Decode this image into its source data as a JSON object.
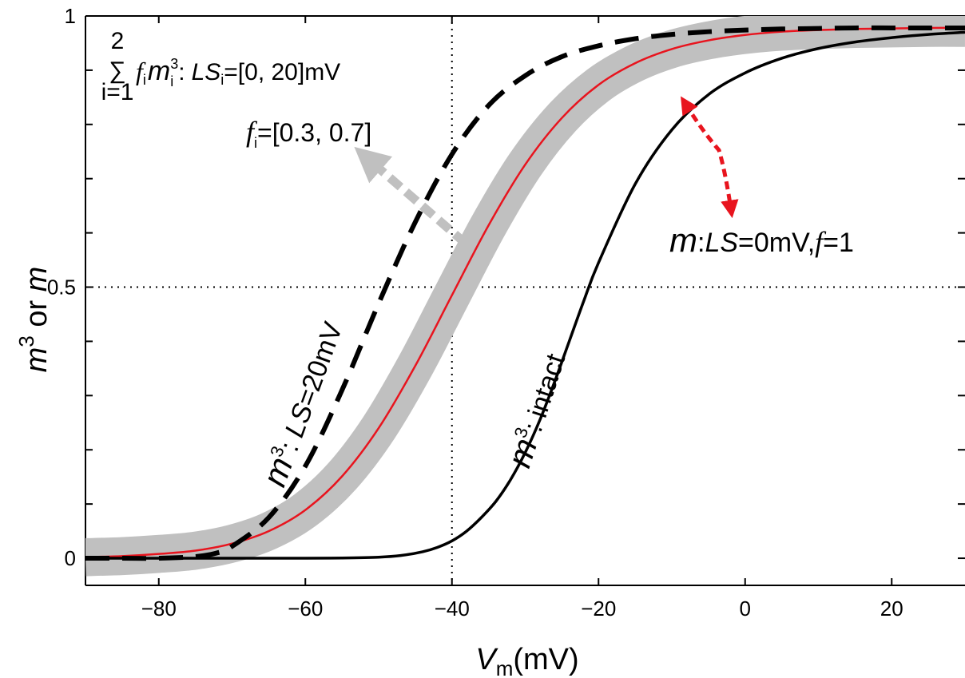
{
  "chart_data": {
    "type": "line",
    "xlabel": {
      "main": "V",
      "sub": "m",
      "unit": "(mV)"
    },
    "ylabel": {
      "main": "m",
      "sup": "3",
      "rest": " or ",
      "tail": "m"
    },
    "xlim": [
      -90,
      30
    ],
    "ylim": [
      -0.05,
      1.0
    ],
    "x_ticks": [
      -80,
      -60,
      -40,
      -20,
      0,
      20
    ],
    "x_tick_labels": [
      "−80",
      "−60",
      "−40",
      "−20",
      "0",
      "20"
    ],
    "y_ticks": [
      0,
      0.5,
      1
    ],
    "y_tick_labels": [
      "0",
      "0.5",
      "1"
    ],
    "minor_y_ticks": [
      0.1,
      0.2,
      0.3,
      0.4,
      0.6,
      0.7,
      0.8,
      0.9
    ],
    "ref_lines": {
      "x": -40,
      "y": 0.5
    },
    "grid": false,
    "series": [
      {
        "key": "band",
        "color": "#c0c0c0",
        "style": "band",
        "half_width": 0.035,
        "values_source": "m1",
        "x": [
          -90,
          -85,
          -80,
          -75,
          -70,
          -65,
          -60,
          -55,
          -50,
          -45,
          -40,
          -35,
          -30,
          -25,
          -20,
          -15,
          -10,
          -5,
          0,
          5,
          10,
          15,
          20,
          25,
          30
        ],
        "y": [
          0.002,
          0.004,
          0.008,
          0.014,
          0.027,
          0.05,
          0.089,
          0.151,
          0.24,
          0.355,
          0.485,
          0.614,
          0.726,
          0.812,
          0.873,
          0.913,
          0.939,
          0.955,
          0.965,
          0.971,
          0.974,
          0.976,
          0.977,
          0.978,
          0.978
        ]
      },
      {
        "key": "m1",
        "color": "#e8141e",
        "style": "solid",
        "x": [
          -90,
          -85,
          -80,
          -75,
          -70,
          -65,
          -60,
          -55,
          -50,
          -45,
          -40,
          -35,
          -30,
          -25,
          -20,
          -15,
          -10,
          -5,
          0,
          5,
          10,
          15,
          20,
          25,
          30
        ],
        "y": [
          0.002,
          0.004,
          0.008,
          0.014,
          0.027,
          0.05,
          0.089,
          0.151,
          0.24,
          0.355,
          0.485,
          0.614,
          0.726,
          0.812,
          0.873,
          0.913,
          0.939,
          0.955,
          0.965,
          0.971,
          0.974,
          0.976,
          0.977,
          0.978,
          0.978
        ]
      },
      {
        "key": "m3_ls20",
        "color": "#000000",
        "style": "dashed",
        "x": [
          -90,
          -85,
          -80,
          -75,
          -72,
          -70,
          -65,
          -60,
          -55,
          -50,
          -45,
          -40,
          -35,
          -30,
          -25,
          -20,
          -15,
          -10,
          -5,
          0,
          5,
          10,
          15,
          20,
          25,
          30
        ],
        "y": [
          0,
          0,
          0,
          0.003,
          0.01,
          0.022,
          0.075,
          0.17,
          0.31,
          0.47,
          0.62,
          0.745,
          0.835,
          0.89,
          0.925,
          0.945,
          0.958,
          0.966,
          0.971,
          0.974,
          0.976,
          0.977,
          0.978,
          0.978,
          0.978,
          0.978
        ]
      },
      {
        "key": "m3_intact",
        "color": "#000000",
        "style": "solid",
        "x": [
          -90,
          -80,
          -70,
          -60,
          -55,
          -50,
          -47,
          -44,
          -42,
          -40,
          -38,
          -36,
          -34,
          -32,
          -30,
          -28,
          -26,
          -24,
          -22,
          -20,
          -15,
          -10,
          -5,
          0,
          5,
          10,
          15,
          20,
          25,
          30
        ],
        "y": [
          0,
          0,
          0,
          0,
          0.0005,
          0.002,
          0.005,
          0.012,
          0.02,
          0.032,
          0.05,
          0.075,
          0.105,
          0.145,
          0.195,
          0.255,
          0.325,
          0.4,
          0.475,
          0.545,
          0.69,
          0.79,
          0.855,
          0.895,
          0.922,
          0.94,
          0.952,
          0.96,
          0.966,
          0.97
        ]
      }
    ],
    "annotations": {
      "sum_label": {
        "sigma": "∑",
        "sum_top": "2",
        "sum_bottom": "i=1",
        "f": "f",
        "f_sub": "i",
        "m": "m",
        "m_sup": "3",
        "m_sub": "i",
        "colon": ":",
        "ls": "LS",
        "ls_sub": "i",
        "ls_range": "=[0, 20]mV"
      },
      "f_label": {
        "f": "f",
        "f_sub": "i",
        "range": "=[0.3, 0.7]"
      },
      "m_label": {
        "m": "m",
        "colon": ":",
        "ls": "LS",
        "ls_val": "=0mV,",
        "f": "f",
        "f_val": "=1"
      },
      "ls20_label": {
        "m": "m",
        "sup": "3",
        "colon": ": ",
        "ls": "LS",
        "val": "=20mV"
      },
      "intact_label": {
        "m": "m",
        "sup": "3",
        "text": ": intact"
      }
    }
  }
}
